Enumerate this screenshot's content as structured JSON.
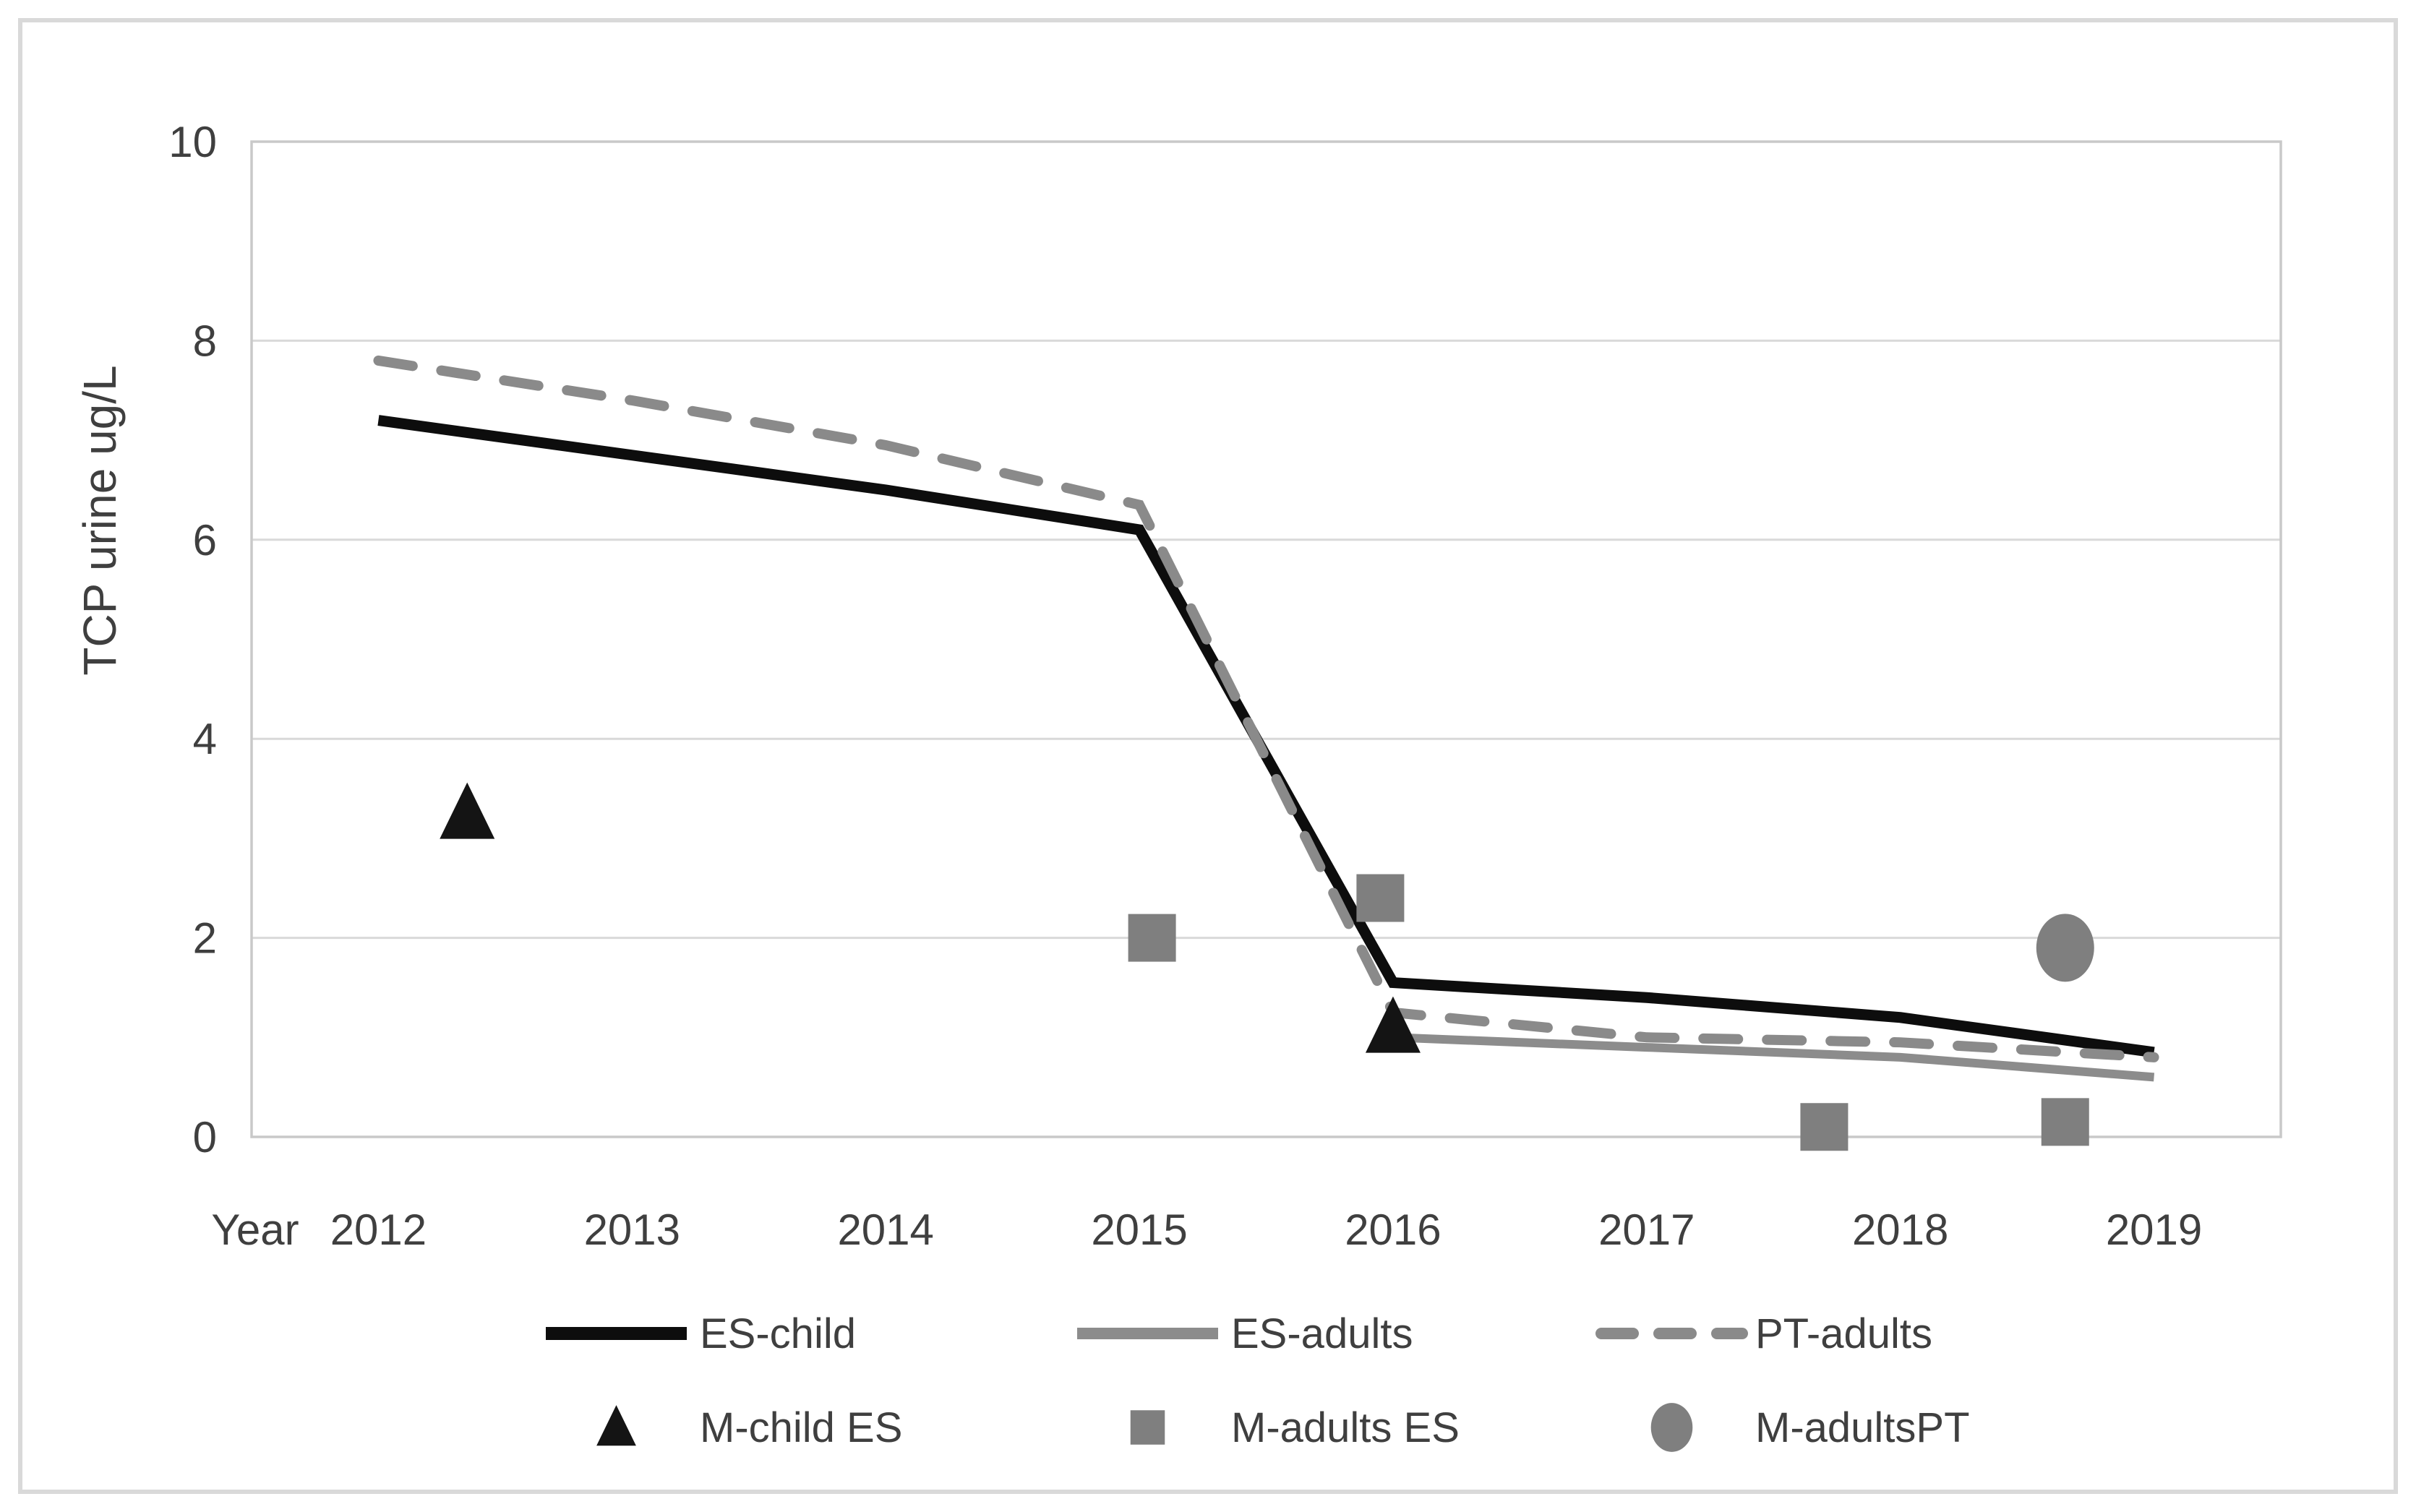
{
  "chart_data": {
    "type": "line",
    "title": "",
    "xlabel": "Year",
    "ylabel": "TCP urine ug/L",
    "ylim": [
      0,
      10
    ],
    "yticks": [
      "0",
      "2",
      "4",
      "6",
      "8",
      "10"
    ],
    "categories": [
      "2012",
      "2013",
      "2014",
      "2015",
      "2016",
      "2017",
      "2018",
      "2019"
    ],
    "x_base_year": 2012,
    "grid": "horizontal",
    "legend_position": "bottom",
    "series": [
      {
        "name": "ES-child",
        "kind": "line",
        "dash": false,
        "color": "#0d0d0d",
        "width": 15,
        "values": [
          7.2,
          6.85,
          6.5,
          6.1,
          1.55,
          1.4,
          1.2,
          0.85
        ],
        "legend": {
          "row": 0,
          "col": 0,
          "swatch": "line"
        }
      },
      {
        "name": "ES-adults",
        "kind": "line",
        "dash": false,
        "color": "#8c8c8c",
        "width": 12,
        "values": [
          null,
          null,
          null,
          null,
          1.0,
          0.9,
          0.8,
          0.6
        ],
        "legend": {
          "row": 0,
          "col": 1,
          "swatch": "line"
        }
      },
      {
        "name": "PT-adults",
        "kind": "line",
        "dash": true,
        "color": "#8a8a8a",
        "width": 14,
        "values": [
          7.8,
          7.4,
          6.95,
          6.35,
          1.25,
          1.0,
          0.95,
          0.8
        ],
        "legend": {
          "row": 0,
          "col": 2,
          "swatch": "dash"
        }
      },
      {
        "name": "M-child ES",
        "kind": "scatter",
        "marker": "triangle",
        "color": "#141414",
        "points": [
          [
            2012.35,
            3.25
          ],
          [
            2016.0,
            1.1
          ]
        ],
        "legend": {
          "row": 1,
          "col": 0,
          "swatch": "triangle"
        }
      },
      {
        "name": "M-adults ES",
        "kind": "scatter",
        "marker": "square",
        "color": "#7f7f7f",
        "points": [
          [
            2015.05,
            2.0
          ],
          [
            2015.95,
            2.4
          ],
          [
            2017.7,
            0.1
          ],
          [
            2018.65,
            0.15
          ]
        ],
        "legend": {
          "row": 1,
          "col": 1,
          "swatch": "square"
        }
      },
      {
        "name": "M-adultsPT",
        "kind": "scatter",
        "marker": "circle",
        "color": "#7f7f7f",
        "points": [
          [
            2018.65,
            1.9
          ]
        ],
        "legend": {
          "row": 1,
          "col": 2,
          "swatch": "circle"
        }
      }
    ],
    "colors": {
      "grid": "#d9d9d9",
      "frame": "#c9c9c9",
      "figure_border": "#d9d9d9",
      "text": "#3f3f3f"
    }
  }
}
